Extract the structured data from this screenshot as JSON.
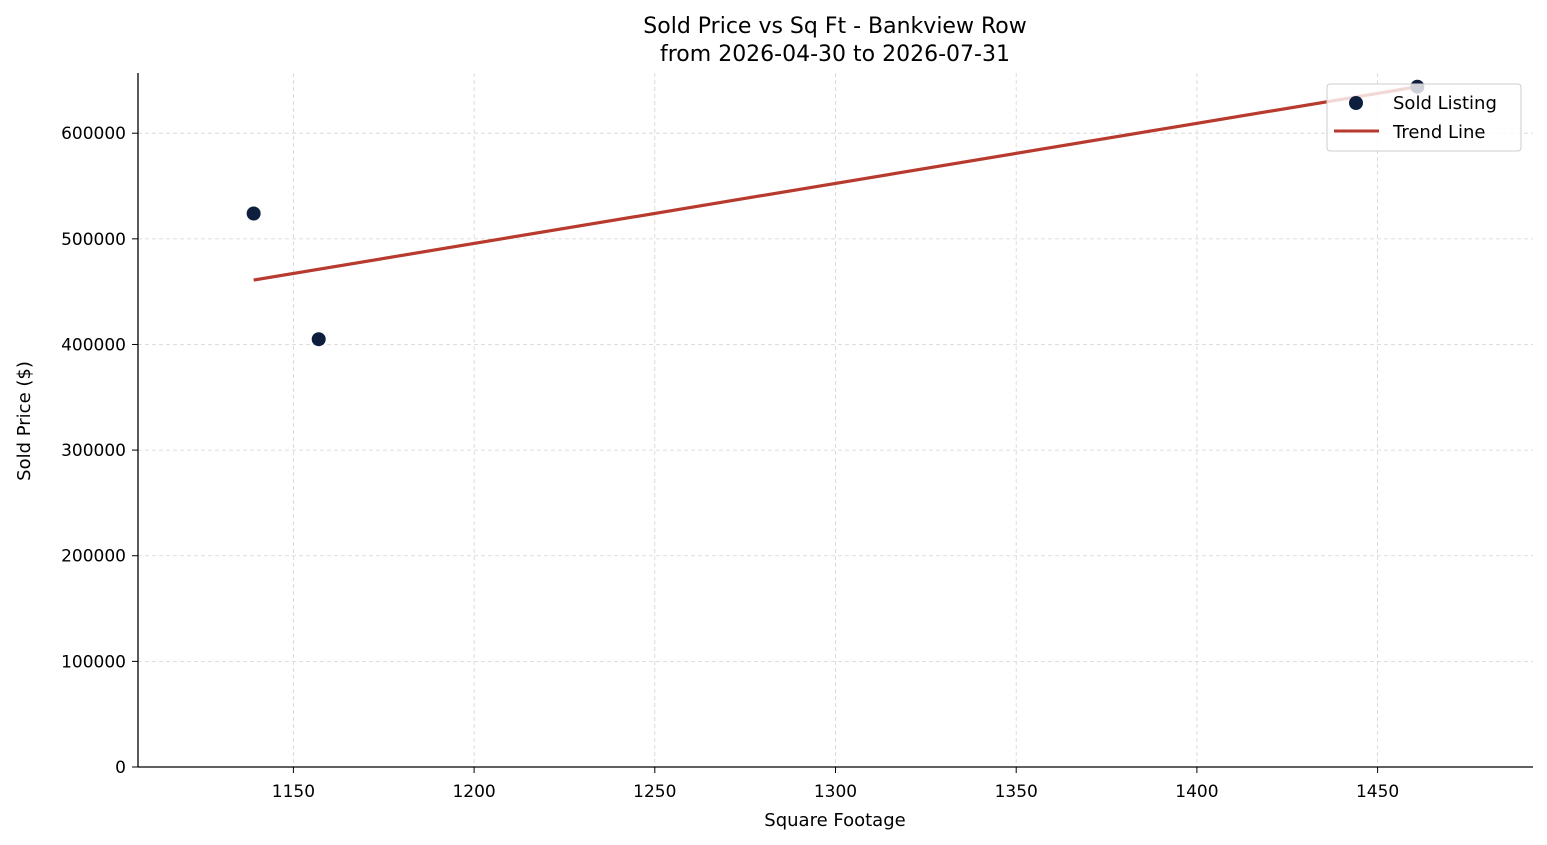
{
  "chart_data": {
    "type": "scatter",
    "title": "Sold Price vs Sq Ft - Bankview Row",
    "subtitle": "from 2026-04-30 to 2026-07-31",
    "xlabel": "Square Footage",
    "ylabel": "Sold Price ($)",
    "xlim": [
      1107,
      1493
    ],
    "ylim": [
      0,
      657000
    ],
    "xticks": [
      1150,
      1200,
      1250,
      1300,
      1350,
      1400,
      1450
    ],
    "yticks": [
      0,
      100000,
      200000,
      300000,
      400000,
      500000,
      600000
    ],
    "grid": true,
    "legend_position": "top-right",
    "series": [
      {
        "name": "Sold Listing",
        "kind": "scatter",
        "color": "#0d1f3d",
        "points": [
          {
            "x": 1139,
            "y": 524000
          },
          {
            "x": 1157,
            "y": 405000
          },
          {
            "x": 1461,
            "y": 644000
          }
        ]
      },
      {
        "name": "Trend Line",
        "kind": "line",
        "color": "#b83a2e",
        "points": [
          {
            "x": 1139,
            "y": 461000
          },
          {
            "x": 1461,
            "y": 644000
          }
        ]
      }
    ]
  }
}
